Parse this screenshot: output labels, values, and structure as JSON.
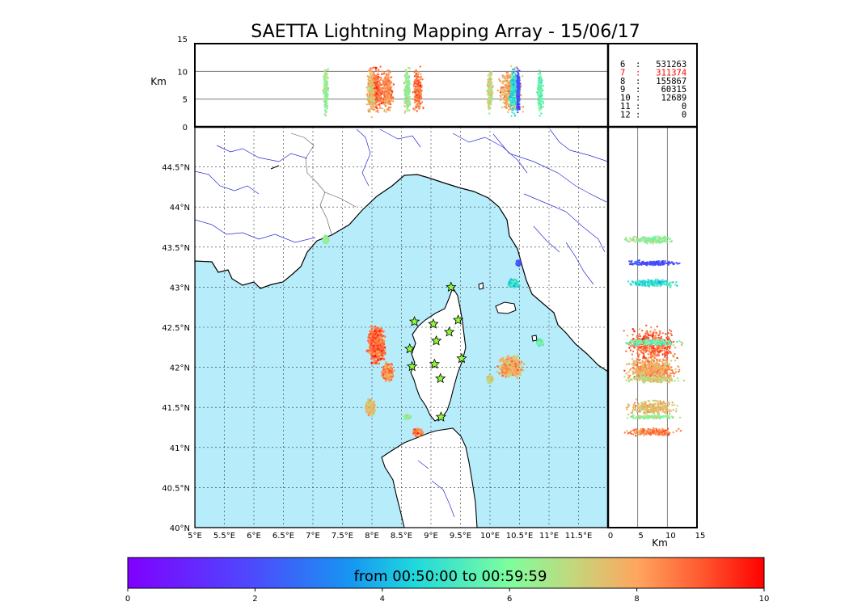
{
  "chart_data": {
    "type": "scatter",
    "title": "SAETTA Lightning Mapping Array - 15/06/17",
    "map": {
      "lon_range": [
        5,
        12
      ],
      "lat_range": [
        40,
        45
      ],
      "lon_ticks": [
        "5°E",
        "5.5°E",
        "6°E",
        "6.5°E",
        "7°E",
        "7.5°E",
        "8°E",
        "8.5°E",
        "9°E",
        "9.5°E",
        "10°E",
        "10.5°E",
        "11°E",
        "11.5°E"
      ],
      "lat_ticks": [
        "40°N",
        "40.5°N",
        "41°N",
        "41.5°N",
        "42°N",
        "42.5°N",
        "43°N",
        "43.5°N",
        "44°N",
        "44.5°N"
      ],
      "sea_color": "#b7ecfb",
      "land_color": "#ffffff",
      "river_color": "#2a2ad8",
      "stations": [
        [
          8.72,
          42.57
        ],
        [
          9.04,
          42.54
        ],
        [
          9.34,
          43.0
        ],
        [
          9.46,
          42.59
        ],
        [
          9.31,
          42.44
        ],
        [
          9.09,
          42.33
        ],
        [
          8.64,
          42.23
        ],
        [
          9.52,
          42.11
        ],
        [
          8.68,
          42.01
        ],
        [
          9.06,
          42.04
        ],
        [
          9.16,
          41.86
        ],
        [
          9.17,
          41.38
        ]
      ],
      "cells": [
        {
          "lon": 8.08,
          "lat": 42.28,
          "rlon": 0.17,
          "rlat": 0.27,
          "t": 8.8
        },
        {
          "lon": 8.27,
          "lat": 41.94,
          "rlon": 0.11,
          "rlat": 0.13,
          "t": 8.4
        },
        {
          "lon": 7.98,
          "lat": 41.5,
          "rlon": 0.09,
          "rlat": 0.12,
          "t": 7.6
        },
        {
          "lon": 10.35,
          "lat": 42.0,
          "rlon": 0.24,
          "rlat": 0.16,
          "t": 7.9
        },
        {
          "lon": 8.78,
          "lat": 41.19,
          "rlon": 0.1,
          "rlat": 0.06,
          "t": 8.5
        },
        {
          "lon": 10.4,
          "lat": 43.05,
          "rlon": 0.1,
          "rlat": 0.06,
          "t": 4.8
        },
        {
          "lon": 7.22,
          "lat": 43.59,
          "rlon": 0.05,
          "rlat": 0.06,
          "t": 6.3
        },
        {
          "lon": 10.85,
          "lat": 42.31,
          "rlon": 0.06,
          "rlat": 0.05,
          "t": 5.6
        },
        {
          "lon": 10.48,
          "lat": 43.3,
          "rlon": 0.04,
          "rlat": 0.04,
          "t": 2.0
        },
        {
          "lon": 8.6,
          "lat": 41.38,
          "rlon": 0.07,
          "rlat": 0.03,
          "t": 6.4
        },
        {
          "lon": 10.0,
          "lat": 41.85,
          "rlon": 0.06,
          "rlat": 0.05,
          "t": 7.0
        }
      ]
    },
    "lon_alt": {
      "ylabel": "Km",
      "y_range": [
        0,
        15
      ],
      "y_ticks": [
        "0",
        "5",
        "10",
        "15"
      ],
      "gridlines": [
        5,
        10
      ]
    },
    "alt_lat": {
      "xlabel": "Km",
      "x_range": [
        0,
        15
      ],
      "x_ticks": [
        "0",
        "5",
        "10",
        "15"
      ],
      "gridlines": [
        5,
        10
      ]
    },
    "legend": [
      {
        "label": "6  :   531263",
        "color": "#000000"
      },
      {
        "label": "7  :   311374",
        "color": "#ff0000"
      },
      {
        "label": "8  :   155867",
        "color": "#000000"
      },
      {
        "label": "9  :    60315",
        "color": "#000000"
      },
      {
        "label": "10 :    12689",
        "color": "#000000"
      },
      {
        "label": "11 :        0",
        "color": "#000000"
      },
      {
        "label": "12 :        0",
        "color": "#000000"
      }
    ],
    "colorbar": {
      "label": "from 00:50:00 to 00:59:59",
      "range": [
        0,
        10
      ],
      "ticks": [
        "0",
        "2",
        "4",
        "6",
        "8",
        "10"
      ],
      "colormap": "rainbow"
    }
  }
}
